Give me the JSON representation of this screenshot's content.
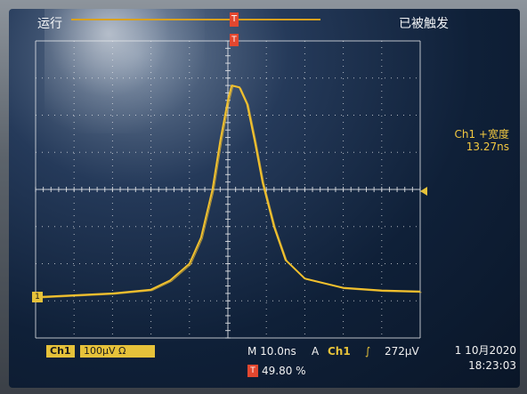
{
  "status": {
    "run_label": "运行",
    "trigger_state": "已被触发"
  },
  "measurement": {
    "label": "Ch1 +宽度",
    "value": "13.27ns"
  },
  "channel": {
    "name": "Ch1",
    "scale": "100μV",
    "scale_suffix": "Ω"
  },
  "horizontal": {
    "time_base": "M 10.0ns",
    "position": "49.80 %"
  },
  "trigger": {
    "source_prefix": "A",
    "source": "Ch1",
    "edge_symbol": "∫",
    "level": "272μV"
  },
  "datetime": {
    "date": "1 10月2020",
    "time": "18:23:03"
  },
  "markers": {
    "trigger_top": "T",
    "trigger_pos": "T",
    "channel_ground": "1"
  },
  "colors": {
    "trace": "#f2c12e",
    "grid": "#e5e7ea",
    "trigger_marker": "#e2472f"
  },
  "waveform": {
    "units_x": "ns",
    "units_y": "μV",
    "x_divisions": 10,
    "y_divisions": 8,
    "ns_per_div": 10,
    "uv_per_div": 100,
    "points": [
      {
        "t": -50,
        "v": -290
      },
      {
        "t": -40,
        "v": -285
      },
      {
        "t": -30,
        "v": -280
      },
      {
        "t": -20,
        "v": -270
      },
      {
        "t": -15,
        "v": -245
      },
      {
        "t": -10,
        "v": -200
      },
      {
        "t": -7,
        "v": -130
      },
      {
        "t": -4,
        "v": 0
      },
      {
        "t": -2,
        "v": 130
      },
      {
        "t": 0,
        "v": 240
      },
      {
        "t": 1,
        "v": 280
      },
      {
        "t": 3,
        "v": 275
      },
      {
        "t": 5,
        "v": 230
      },
      {
        "t": 7,
        "v": 130
      },
      {
        "t": 9,
        "v": 20
      },
      {
        "t": 12,
        "v": -100
      },
      {
        "t": 15,
        "v": -190
      },
      {
        "t": 20,
        "v": -240
      },
      {
        "t": 30,
        "v": -265
      },
      {
        "t": 40,
        "v": -272
      },
      {
        "t": 50,
        "v": -275
      }
    ]
  }
}
